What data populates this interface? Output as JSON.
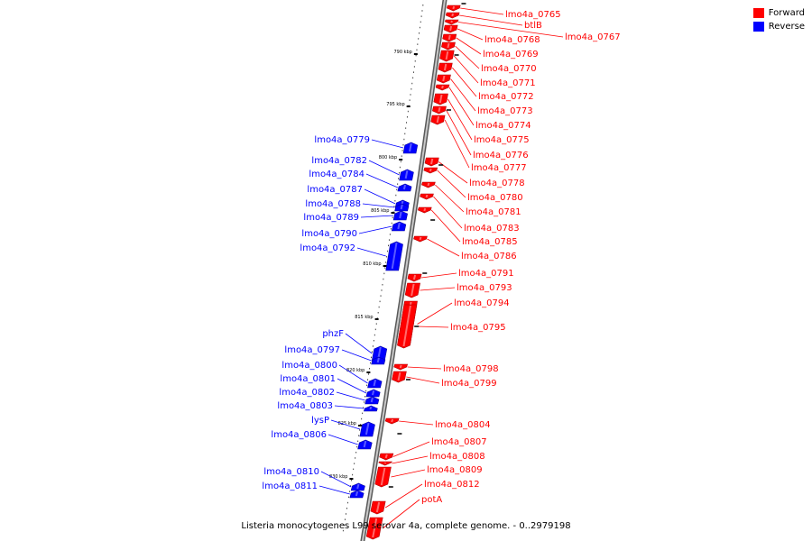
{
  "legend": [
    {
      "label": "Forward",
      "color": "#ff0000"
    },
    {
      "label": "Reverse",
      "color": "#0000ff"
    }
  ],
  "caption": "Listeria monocytogenes L99 serovar 4a, complete genome. - 0..2979198",
  "colors": {
    "forward": "#ff0000",
    "reverse": "#0000ff",
    "backbone": "#8c8c8c"
  },
  "ticks": [
    "790 kbp",
    "795 kbp",
    "800 kbp",
    "805 kbp",
    "810 kbp",
    "815 kbp",
    "820 kbp",
    "825 kbp",
    "830 kbp"
  ],
  "genes_forward": [
    "lmo4a_0765",
    "btlB",
    "lmo4a_0767",
    "lmo4a_0768",
    "lmo4a_0769",
    "lmo4a_0770",
    "lmo4a_0771",
    "lmo4a_0772",
    "lmo4a_0773",
    "lmo4a_0774",
    "lmo4a_0775",
    "lmo4a_0776",
    "lmo4a_0777",
    "lmo4a_0778",
    "lmo4a_0780",
    "lmo4a_0781",
    "lmo4a_0783",
    "lmo4a_0785",
    "lmo4a_0786",
    "lmo4a_0791",
    "lmo4a_0793",
    "lmo4a_0794",
    "lmo4a_0795",
    "lmo4a_0798",
    "lmo4a_0799",
    "lmo4a_0804",
    "lmo4a_0807",
    "lmo4a_0808",
    "lmo4a_0809",
    "lmo4a_0812",
    "potA"
  ],
  "genes_reverse": [
    "lmo4a_0779",
    "lmo4a_0782",
    "lmo4a_0784",
    "lmo4a_0787",
    "lmo4a_0788",
    "lmo4a_0789",
    "lmo4a_0790",
    "lmo4a_0792",
    "phzF",
    "lmo4a_0797",
    "lmo4a_0800",
    "lmo4a_0801",
    "lmo4a_0802",
    "lmo4a_0803",
    "lysP",
    "lmo4a_0806",
    "lmo4a_0810",
    "lmo4a_0811"
  ]
}
